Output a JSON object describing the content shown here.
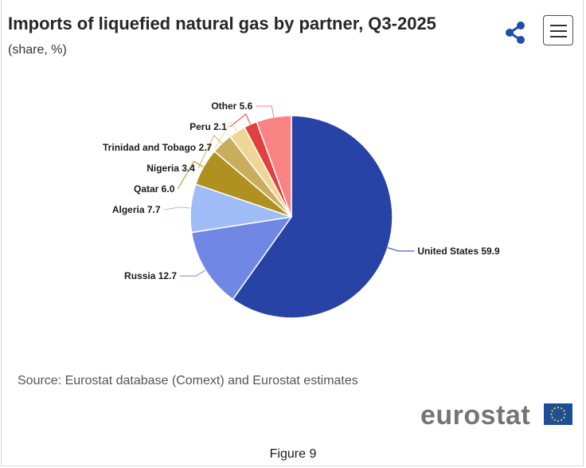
{
  "header": {
    "title": "Imports of liquefied natural gas by partner, Q3-2025",
    "subtitle": "(share, %)"
  },
  "toolbar": {
    "share_icon": "share-icon",
    "menu_icon": "hamburger-menu-icon",
    "accent_color": "#1f4fa8"
  },
  "chart_data": {
    "type": "pie",
    "title": "Imports of liquefied natural gas by partner, Q3-2025",
    "subtitle": "(share, %)",
    "slices": [
      {
        "name": "United States",
        "value": 59.9,
        "label": "United States 59.9",
        "color": "#2843a6"
      },
      {
        "name": "Russia",
        "value": 12.7,
        "label": "Russia 12.7",
        "color": "#7088e4"
      },
      {
        "name": "Algeria",
        "value": 7.7,
        "label": "Algeria 7.7",
        "color": "#9fbcf7"
      },
      {
        "name": "Qatar",
        "value": 6.0,
        "label": "Qatar 6.0",
        "color": "#b0901f"
      },
      {
        "name": "Nigeria",
        "value": 3.4,
        "label": "Nigeria 3.4",
        "color": "#c8ae5c"
      },
      {
        "name": "Trinidad and Tobago",
        "value": 2.7,
        "label": "Trinidad and Tobago 2.7",
        "color": "#eed694"
      },
      {
        "name": "Peru",
        "value": 2.1,
        "label": "Peru 2.1",
        "color": "#e04040"
      },
      {
        "name": "Other",
        "value": 5.6,
        "label": "Other 5.6",
        "color": "#f98383"
      }
    ],
    "start_angle_deg": 0,
    "direction": "clockwise"
  },
  "source": "Source: Eurostat database (Comext) and Eurostat estimates",
  "logo": {
    "text": "eurostat",
    "flag_color": "#1c4e9a",
    "star_color": "#ffcc00"
  },
  "caption": "Figure 9"
}
